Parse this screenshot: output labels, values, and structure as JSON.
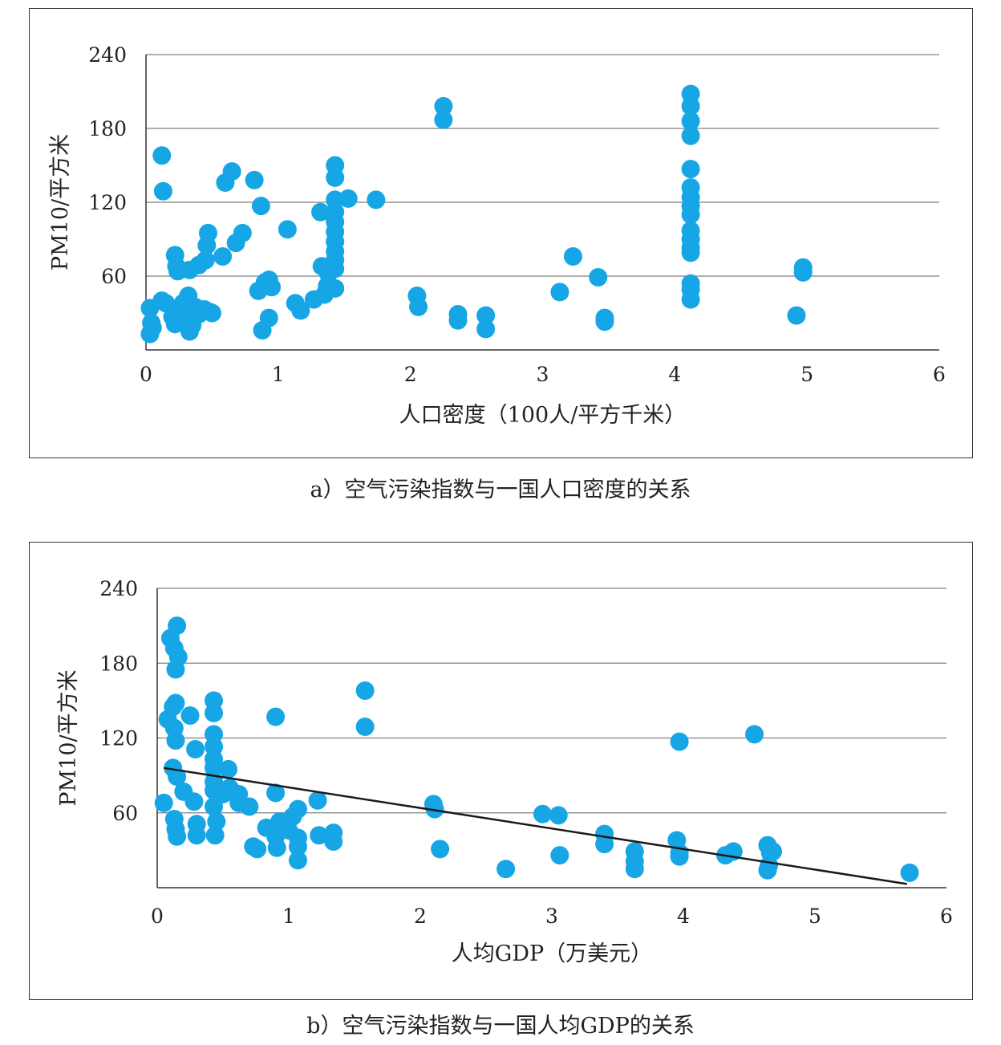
{
  "chart_data": [
    {
      "id": "a",
      "type": "scatter",
      "xlabel": "人口密度（100人/平方千米）",
      "ylabel": "PM10/平方米",
      "xlim": [
        0,
        6
      ],
      "ylim": [
        0,
        240
      ],
      "x_ticks": [
        "0",
        "1",
        "2",
        "3",
        "4",
        "5",
        "6"
      ],
      "y_ticks": [
        "60",
        "120",
        "180",
        "240"
      ],
      "grid": "horizontal",
      "point_color": "#16a6e6",
      "points": [
        [
          0.12,
          158
        ],
        [
          0.13,
          129
        ],
        [
          0.03,
          34
        ],
        [
          0.04,
          22
        ],
        [
          0.03,
          13
        ],
        [
          0.05,
          18
        ],
        [
          0.15,
          38
        ],
        [
          0.12,
          40
        ],
        [
          0.2,
          27
        ],
        [
          0.22,
          21
        ],
        [
          0.25,
          33
        ],
        [
          0.28,
          38
        ],
        [
          0.3,
          26
        ],
        [
          0.32,
          44
        ],
        [
          0.33,
          15
        ],
        [
          0.35,
          20
        ],
        [
          0.37,
          35
        ],
        [
          0.4,
          29
        ],
        [
          0.44,
          33
        ],
        [
          0.48,
          31
        ],
        [
          0.5,
          30
        ],
        [
          0.22,
          77
        ],
        [
          0.23,
          68
        ],
        [
          0.24,
          64
        ],
        [
          0.33,
          65
        ],
        [
          0.4,
          69
        ],
        [
          0.45,
          73
        ],
        [
          0.46,
          85
        ],
        [
          0.47,
          95
        ],
        [
          0.58,
          76
        ],
        [
          0.6,
          136
        ],
        [
          0.65,
          145
        ],
        [
          0.68,
          87
        ],
        [
          0.73,
          95
        ],
        [
          0.82,
          138
        ],
        [
          0.85,
          48
        ],
        [
          0.87,
          117
        ],
        [
          0.9,
          55
        ],
        [
          0.93,
          57
        ],
        [
          0.95,
          51
        ],
        [
          0.88,
          16
        ],
        [
          0.93,
          26
        ],
        [
          1.07,
          98
        ],
        [
          1.13,
          38
        ],
        [
          1.17,
          32
        ],
        [
          1.27,
          41
        ],
        [
          1.32,
          112
        ],
        [
          1.35,
          45
        ],
        [
          1.33,
          68
        ],
        [
          1.37,
          52
        ],
        [
          1.38,
          62
        ],
        [
          1.43,
          150
        ],
        [
          1.43,
          140
        ],
        [
          1.43,
          122
        ],
        [
          1.43,
          112
        ],
        [
          1.43,
          104
        ],
        [
          1.43,
          96
        ],
        [
          1.43,
          88
        ],
        [
          1.43,
          80
        ],
        [
          1.43,
          73
        ],
        [
          1.43,
          66
        ],
        [
          1.43,
          50
        ],
        [
          1.53,
          123
        ],
        [
          1.74,
          122
        ],
        [
          2.05,
          44
        ],
        [
          2.06,
          35
        ],
        [
          2.25,
          198
        ],
        [
          2.25,
          187
        ],
        [
          2.36,
          29
        ],
        [
          2.36,
          24
        ],
        [
          2.57,
          28
        ],
        [
          2.57,
          17
        ],
        [
          3.13,
          47
        ],
        [
          3.23,
          76
        ],
        [
          3.42,
          59
        ],
        [
          3.47,
          26
        ],
        [
          3.47,
          23
        ],
        [
          4.12,
          208
        ],
        [
          4.12,
          198
        ],
        [
          4.12,
          186
        ],
        [
          4.12,
          174
        ],
        [
          4.12,
          147
        ],
        [
          4.12,
          132
        ],
        [
          4.12,
          124
        ],
        [
          4.12,
          117
        ],
        [
          4.12,
          110
        ],
        [
          4.12,
          97
        ],
        [
          4.12,
          90
        ],
        [
          4.12,
          83
        ],
        [
          4.12,
          79
        ],
        [
          4.12,
          54
        ],
        [
          4.12,
          49
        ],
        [
          4.12,
          41
        ],
        [
          4.92,
          28
        ],
        [
          4.97,
          67
        ],
        [
          4.97,
          63
        ]
      ]
    },
    {
      "id": "b",
      "type": "scatter",
      "xlabel": "人均GDP（万美元）",
      "ylabel": "PM10/平方米",
      "xlim": [
        0,
        6
      ],
      "ylim": [
        0,
        240
      ],
      "x_ticks": [
        "0",
        "1",
        "2",
        "3",
        "4",
        "5",
        "6"
      ],
      "y_ticks": [
        "60",
        "120",
        "180",
        "240"
      ],
      "grid": "horizontal",
      "point_color": "#16a6e6",
      "trendline": {
        "color": "#1a1a1a",
        "from": [
          0.05,
          96
        ],
        "to": [
          5.7,
          3
        ]
      },
      "points": [
        [
          0.15,
          210
        ],
        [
          0.1,
          200
        ],
        [
          0.13,
          192
        ],
        [
          0.16,
          185
        ],
        [
          0.14,
          175
        ],
        [
          0.14,
          148
        ],
        [
          0.12,
          145
        ],
        [
          0.08,
          135
        ],
        [
          0.13,
          128
        ],
        [
          0.14,
          118
        ],
        [
          0.12,
          96
        ],
        [
          0.15,
          89
        ],
        [
          0.05,
          68
        ],
        [
          0.13,
          55
        ],
        [
          0.14,
          47
        ],
        [
          0.15,
          41
        ],
        [
          0.2,
          77
        ],
        [
          0.25,
          138
        ],
        [
          0.29,
          111
        ],
        [
          0.28,
          69
        ],
        [
          0.3,
          51
        ],
        [
          0.3,
          42
        ],
        [
          0.43,
          150
        ],
        [
          0.43,
          140
        ],
        [
          0.43,
          123
        ],
        [
          0.43,
          113
        ],
        [
          0.43,
          103
        ],
        [
          0.43,
          96
        ],
        [
          0.43,
          85
        ],
        [
          0.43,
          78
        ],
        [
          0.43,
          65
        ],
        [
          0.45,
          53
        ],
        [
          0.44,
          42
        ],
        [
          0.5,
          75
        ],
        [
          0.54,
          95
        ],
        [
          0.55,
          80
        ],
        [
          0.62,
          75
        ],
        [
          0.62,
          68
        ],
        [
          0.7,
          65
        ],
        [
          0.73,
          33
        ],
        [
          0.76,
          31
        ],
        [
          0.83,
          48
        ],
        [
          0.9,
          137
        ],
        [
          0.9,
          76
        ],
        [
          0.9,
          41
        ],
        [
          0.91,
          32
        ],
        [
          0.93,
          53
        ],
        [
          1.0,
          46
        ],
        [
          1.03,
          57
        ],
        [
          1.07,
          63
        ],
        [
          1.07,
          40
        ],
        [
          1.07,
          33
        ],
        [
          1.07,
          22
        ],
        [
          1.22,
          70
        ],
        [
          1.23,
          42
        ],
        [
          1.34,
          44
        ],
        [
          1.34,
          37
        ],
        [
          1.58,
          158
        ],
        [
          1.58,
          129
        ],
        [
          2.1,
          67
        ],
        [
          2.11,
          63
        ],
        [
          2.15,
          31
        ],
        [
          2.65,
          15
        ],
        [
          2.93,
          59
        ],
        [
          3.05,
          58
        ],
        [
          3.06,
          26
        ],
        [
          3.4,
          43
        ],
        [
          3.4,
          35
        ],
        [
          3.63,
          29
        ],
        [
          3.63,
          21
        ],
        [
          3.63,
          15
        ],
        [
          3.97,
          117
        ],
        [
          3.95,
          38
        ],
        [
          3.97,
          28
        ],
        [
          3.97,
          25
        ],
        [
          4.32,
          26
        ],
        [
          4.38,
          29
        ],
        [
          4.54,
          123
        ],
        [
          4.64,
          34
        ],
        [
          4.66,
          28
        ],
        [
          4.65,
          18
        ],
        [
          4.64,
          14
        ],
        [
          4.68,
          29
        ],
        [
          5.72,
          12
        ]
      ]
    }
  ],
  "captions": {
    "a": "a）空气污染指数与一国人口密度的关系",
    "b": "b）空气污染指数与一国人均GDP的关系"
  }
}
